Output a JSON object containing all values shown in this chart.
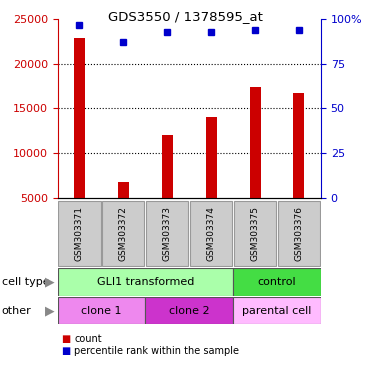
{
  "title": "GDS3550 / 1378595_at",
  "samples": [
    "GSM303371",
    "GSM303372",
    "GSM303373",
    "GSM303374",
    "GSM303375",
    "GSM303376"
  ],
  "counts": [
    22900,
    6800,
    12000,
    14000,
    17400,
    16700
  ],
  "percentile_ranks": [
    97,
    87,
    93,
    93,
    94,
    94
  ],
  "ylim_left": [
    5000,
    25000
  ],
  "ylim_right": [
    0,
    100
  ],
  "yticks_left": [
    5000,
    10000,
    15000,
    20000,
    25000
  ],
  "yticks_right": [
    0,
    25,
    50,
    75,
    100
  ],
  "bar_color": "#cc0000",
  "dot_color": "#0000cc",
  "bar_bottom": 5000,
  "cell_type_groups": [
    {
      "label": "GLI1 transformed",
      "span": [
        0,
        4
      ],
      "color": "#aaffaa"
    },
    {
      "label": "control",
      "span": [
        4,
        6
      ],
      "color": "#44dd44"
    }
  ],
  "other_groups": [
    {
      "label": "clone 1",
      "span": [
        0,
        2
      ],
      "color": "#ee88ee"
    },
    {
      "label": "clone 2",
      "span": [
        2,
        4
      ],
      "color": "#cc33cc"
    },
    {
      "label": "parental cell",
      "span": [
        4,
        6
      ],
      "color": "#ffbbff"
    }
  ],
  "legend_items": [
    {
      "color": "#cc0000",
      "label": "count"
    },
    {
      "color": "#0000cc",
      "label": "percentile rank within the sample"
    }
  ],
  "tick_color_left": "#cc0000",
  "tick_color_right": "#0000cc",
  "background_color": "#ffffff",
  "sample_bg_color": "#cccccc",
  "grid_lines": [
    10000,
    15000,
    20000
  ]
}
